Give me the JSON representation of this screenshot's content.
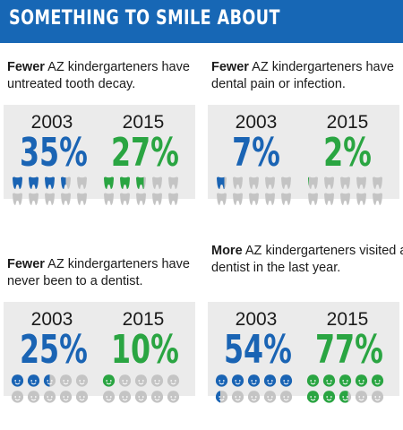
{
  "header": {
    "title": "SOMETHING TO SMILE ABOUT"
  },
  "colors": {
    "header_bg": "#1767b5",
    "blue": "#1a64b4",
    "green": "#2aa542",
    "gray": "#c4c4c4",
    "panel": "#ebebeb"
  },
  "panels": [
    {
      "caption_lead": "Fewer",
      "caption_rest": " AZ kindergarteners have untreated tooth decay.",
      "icon": "tooth-icon",
      "stats": [
        {
          "year": "2003",
          "percent": "35%",
          "value": 35,
          "color": "blue"
        },
        {
          "year": "2015",
          "percent": "27%",
          "value": 27,
          "color": "green"
        }
      ]
    },
    {
      "caption_lead": "Fewer",
      "caption_rest": " AZ kindergarteners have dental pain or infection.",
      "icon": "tooth-icon",
      "stats": [
        {
          "year": "2003",
          "percent": "7%",
          "value": 7,
          "color": "blue"
        },
        {
          "year": "2015",
          "percent": "2%",
          "value": 2,
          "color": "green"
        }
      ]
    },
    {
      "caption_lead": "Fewer",
      "caption_rest": " AZ kindergarteners have never been to a dentist.",
      "icon": "child-face-icon",
      "stats": [
        {
          "year": "2003",
          "percent": "25%",
          "value": 25,
          "color": "blue"
        },
        {
          "year": "2015",
          "percent": "10%",
          "value": 10,
          "color": "green"
        }
      ]
    },
    {
      "caption_lead": "More",
      "caption_rest": " AZ kindergarteners visited a dentist in the last year.",
      "icon": "child-face-icon",
      "stats": [
        {
          "year": "2003",
          "percent": "54%",
          "value": 54,
          "color": "blue"
        },
        {
          "year": "2015",
          "percent": "77%",
          "value": 77,
          "color": "green"
        }
      ]
    }
  ]
}
